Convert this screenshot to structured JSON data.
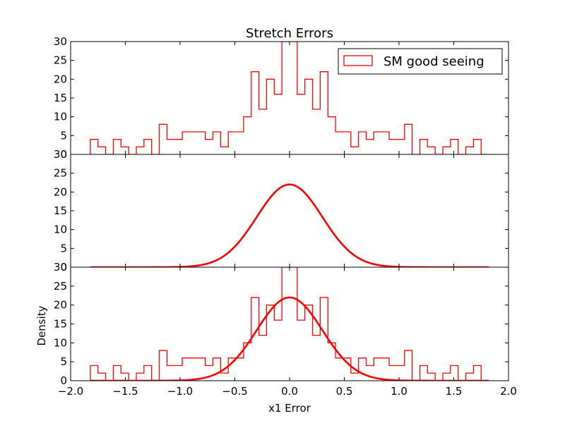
{
  "figure": {
    "title": "Stretch Errors",
    "xlabel": "x1 Error",
    "ylabel": "Density"
  },
  "chart_data": {
    "type": "histogram",
    "xlim": [
      -2.0,
      2.0
    ],
    "ylim": [
      0,
      30
    ],
    "x_ticks": [
      -2.0,
      -1.5,
      -1.0,
      -0.5,
      0.0,
      0.5,
      1.0,
      1.5,
      2.0
    ],
    "x_tick_labels": [
      "−2.0",
      "−1.5",
      "−1.0",
      "−0.5",
      "0.0",
      "0.5",
      "1.0",
      "1.5",
      "2.0"
    ],
    "y_ticks": [
      0,
      5,
      10,
      15,
      20,
      25,
      30
    ],
    "grid": false,
    "color": "#ff0000",
    "legend": {
      "label": "SM good seeing",
      "placement": "top-right"
    },
    "histogram": {
      "name": "SM good seeing",
      "edges": [
        -1.82,
        -1.75,
        -1.68,
        -1.61,
        -1.54,
        -1.47,
        -1.4,
        -1.33,
        -1.26,
        -1.19,
        -1.12,
        -1.05,
        -0.98,
        -0.91,
        -0.84,
        -0.77,
        -0.7,
        -0.63,
        -0.56,
        -0.49,
        -0.42,
        -0.35,
        -0.28,
        -0.21,
        -0.14,
        -0.07,
        0.0,
        0.07,
        0.14,
        0.21,
        0.28,
        0.35,
        0.42,
        0.49,
        0.56,
        0.63,
        0.7,
        0.77,
        0.84,
        0.91,
        0.98,
        1.05,
        1.12,
        1.19,
        1.26,
        1.33,
        1.4,
        1.47,
        1.54,
        1.61,
        1.68,
        1.75,
        1.82
      ],
      "counts": [
        4,
        2,
        0,
        4,
        2,
        0,
        2,
        4,
        0,
        8,
        4,
        4,
        6,
        6,
        6,
        4,
        6,
        2,
        6,
        6,
        10,
        22,
        12,
        20,
        16,
        30,
        30,
        16,
        20,
        12,
        22,
        10,
        6,
        6,
        2,
        6,
        4,
        6,
        6,
        4,
        4,
        8,
        0,
        4,
        2,
        0,
        2,
        4,
        0,
        2,
        4,
        0
      ]
    },
    "gaussian": {
      "mean": 0.0,
      "sigma": 0.3,
      "peak": 22.0,
      "x_range": [
        -1.82,
        1.82
      ]
    },
    "panels": [
      {
        "name": "top",
        "content": [
          "histogram"
        ],
        "legend": true,
        "show_xtick_labels": false
      },
      {
        "name": "middle",
        "content": [
          "gaussian"
        ],
        "legend": false,
        "show_xtick_labels": false
      },
      {
        "name": "bottom",
        "content": [
          "histogram",
          "gaussian"
        ],
        "legend": false,
        "show_xtick_labels": true
      }
    ]
  }
}
